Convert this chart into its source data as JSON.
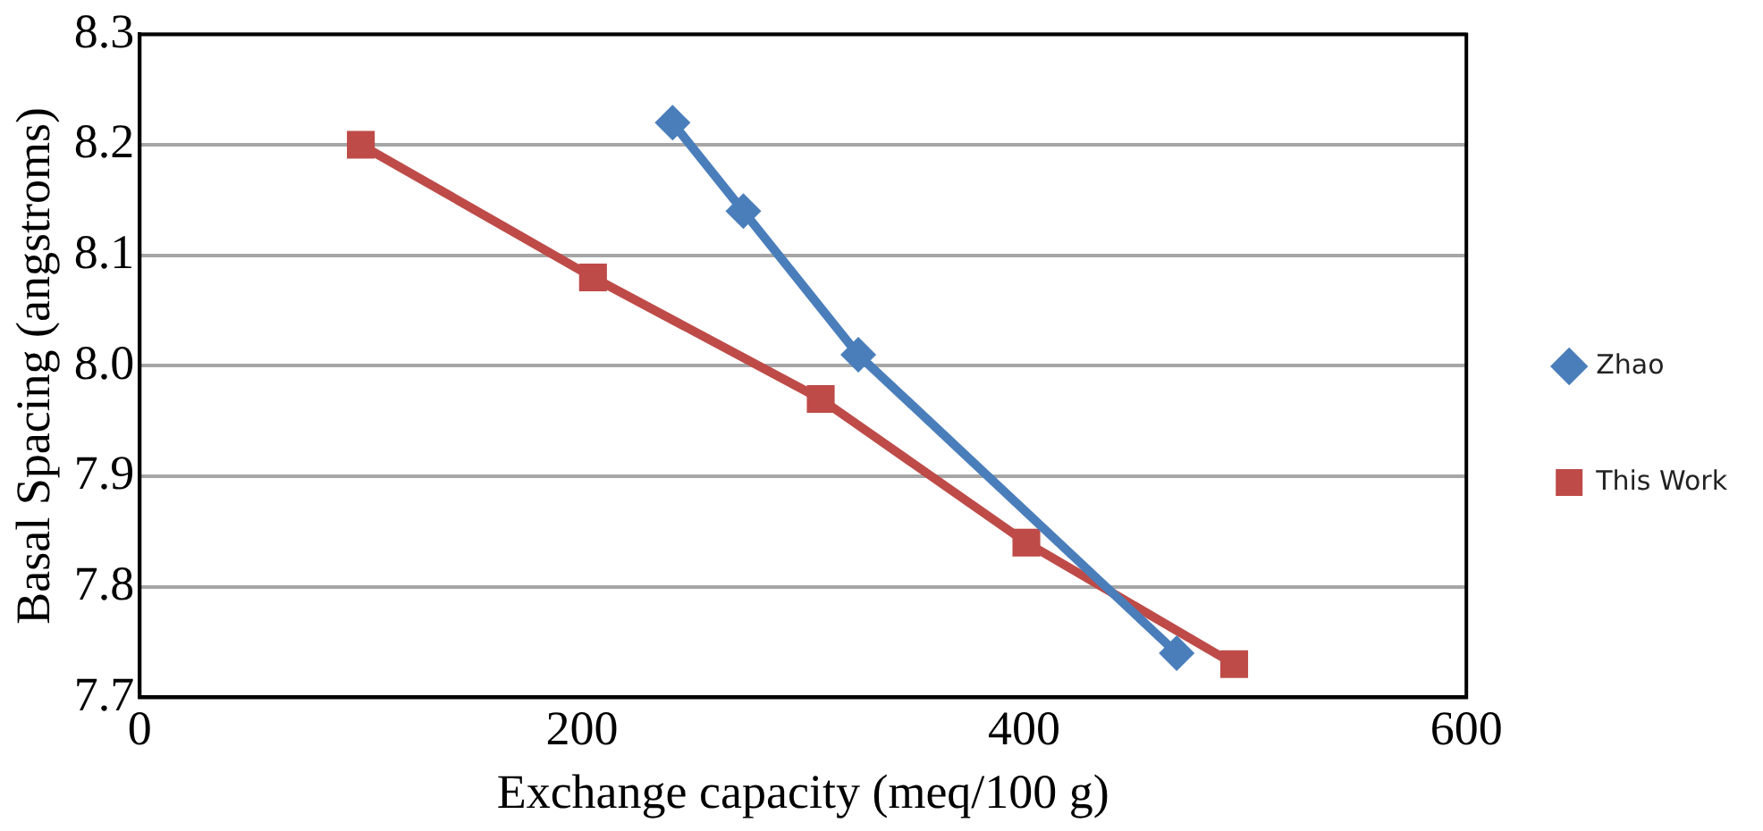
{
  "chart_data": {
    "type": "line",
    "xlabel": "Exchange capacity (meq/100 g)",
    "ylabel": "Basal Spacing (angstroms)",
    "xlim": [
      0,
      600
    ],
    "xticks": [
      0,
      200,
      400,
      600
    ],
    "ylim": [
      7.7,
      8.3
    ],
    "yticks": [
      {
        "value": 7.7,
        "label": "7.7"
      },
      {
        "value": 7.8,
        "label": "7.8"
      },
      {
        "value": 7.9,
        "label": "7.9"
      },
      {
        "value": 8.0,
        "label": "8.0"
      },
      {
        "value": 8.1,
        "label": "8.1"
      },
      {
        "value": 8.2,
        "label": "8.2"
      },
      {
        "value": 8.3,
        "label": "8.3"
      }
    ],
    "grid": "y",
    "legend": "right",
    "series": [
      {
        "name": "Zhao",
        "color": "#4a7ebb",
        "marker": "diamond",
        "x": [
          241,
          273,
          325,
          469
        ],
        "values": [
          8.22,
          8.14,
          8.01,
          7.74
        ]
      },
      {
        "name": "This Work",
        "color": "#be4b48",
        "marker": "square",
        "x": [
          100,
          205,
          308,
          401,
          495
        ],
        "values": [
          8.2,
          8.08,
          7.97,
          7.84,
          7.73
        ]
      }
    ]
  }
}
